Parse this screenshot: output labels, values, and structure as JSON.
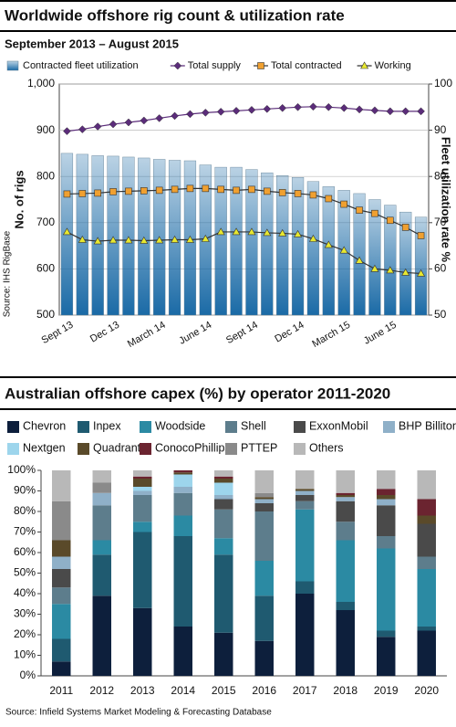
{
  "chart_data": [
    {
      "type": "combo",
      "title": "Worldwide offshore rig count & utilization rate",
      "subtitle": "September 2013 – August 2015",
      "ylabel": "No. of rigs",
      "y2label": "Fleet utilization rate %",
      "source": "Source: IHS RigBase",
      "categories": [
        "Sept 13",
        null,
        null,
        "Dec 13",
        null,
        null,
        "March 14",
        null,
        null,
        "June 14",
        null,
        null,
        "Sept 14",
        null,
        null,
        "Dec 14",
        null,
        null,
        "March 15",
        null,
        null,
        "June 15",
        null,
        null
      ],
      "ylim": [
        500,
        1000
      ],
      "yticks": [
        500,
        600,
        700,
        800,
        900,
        {
          "value": 1000,
          "label": "1,000"
        }
      ],
      "y2lim": [
        50,
        100
      ],
      "y2ticks": [
        50,
        60,
        70,
        80,
        90,
        100
      ],
      "series": [
        {
          "name": "Contracted fleet utilization",
          "kind": "bar",
          "axis": "y2",
          "color": "#1a6aa6",
          "values": [
            85,
            84.8,
            84.5,
            84.4,
            84.2,
            84,
            83.7,
            83.5,
            83.4,
            82.5,
            82,
            82,
            81.5,
            80.8,
            80.2,
            79.8,
            78.9,
            77.8,
            77,
            76.3,
            75,
            73.8,
            72.3,
            71.2
          ]
        },
        {
          "name": "Total supply",
          "kind": "line",
          "marker": "diamond",
          "color": "#5b2c7a",
          "line_color": "#5b2c7a",
          "values": [
            898,
            902,
            908,
            913,
            917,
            921,
            926,
            931,
            935,
            938,
            940,
            942,
            944,
            946,
            948,
            950,
            951,
            950,
            948,
            945,
            943,
            941,
            941,
            941
          ]
        },
        {
          "name": "Total contracted",
          "kind": "line",
          "marker": "square",
          "color": "#f0a030",
          "line_color": "#333333",
          "values": [
            762,
            763,
            764,
            767,
            768,
            769,
            770,
            772,
            774,
            774,
            772,
            770,
            772,
            768,
            765,
            763,
            760,
            752,
            740,
            727,
            720,
            705,
            690,
            672
          ]
        },
        {
          "name": "Working",
          "kind": "line",
          "marker": "triangle",
          "color": "#e8e830",
          "line_color": "#333333",
          "values": [
            680,
            663,
            660,
            662,
            662,
            661,
            662,
            663,
            663,
            665,
            680,
            680,
            680,
            678,
            677,
            675,
            665,
            652,
            640,
            618,
            600,
            597,
            592,
            590
          ]
        }
      ]
    },
    {
      "type": "stacked_bar",
      "title": "Australian offshore capex (%) by operator 2011-2020",
      "source": "Source: Infield Systems Market Modeling & Forecasting Database",
      "categories": [
        "2011",
        "2012",
        "2013",
        "2014",
        "2015",
        "2016",
        "2017",
        "2018",
        "2019",
        "2020"
      ],
      "ylim": [
        0,
        100
      ],
      "yticks": [
        {
          "value": 0,
          "label": "0%"
        },
        {
          "value": 10,
          "label": "10%"
        },
        {
          "value": 20,
          "label": "20%"
        },
        {
          "value": 30,
          "label": "30%"
        },
        {
          "value": 40,
          "label": "40%"
        },
        {
          "value": 50,
          "label": "50%"
        },
        {
          "value": 60,
          "label": "60%"
        },
        {
          "value": 70,
          "label": "70%"
        },
        {
          "value": 80,
          "label": "80%"
        },
        {
          "value": 90,
          "label": "90%"
        },
        {
          "value": 100,
          "label": "100%"
        }
      ],
      "series": [
        {
          "name": "Chevron",
          "color": "#0d1f3c",
          "values": [
            7,
            39,
            33,
            24,
            21,
            17,
            40,
            32,
            19,
            22
          ]
        },
        {
          "name": "Inpex",
          "color": "#1f5a70",
          "values": [
            11,
            20,
            37,
            44,
            38,
            22,
            6,
            4,
            3,
            2
          ]
        },
        {
          "name": "Woodside",
          "color": "#2b8aa3",
          "values": [
            17,
            7,
            5,
            10,
            8,
            17,
            35,
            30,
            40,
            28
          ]
        },
        {
          "name": "Shell",
          "color": "#5d7d8c",
          "values": [
            8,
            17,
            13,
            11,
            14,
            24,
            4,
            9,
            6,
            6
          ]
        },
        {
          "name": "ExxonMobil",
          "color": "#4a4a4a",
          "values": [
            9,
            0,
            0,
            0,
            5,
            4,
            3,
            10,
            15,
            16
          ]
        },
        {
          "name": "BHP Billiton",
          "color": "#8fb0c8",
          "values": [
            6,
            6,
            2,
            3,
            2,
            2,
            2,
            2,
            3,
            0
          ]
        },
        {
          "name": "Nextgen",
          "color": "#9dd5ec",
          "values": [
            0,
            0,
            2,
            6,
            6,
            0,
            0,
            0,
            0,
            0
          ]
        },
        {
          "name": "Quadrant",
          "color": "#5a4a2a",
          "values": [
            8,
            0,
            4,
            1,
            2,
            1,
            1,
            1,
            2,
            4
          ]
        },
        {
          "name": "ConocoPhillips",
          "color": "#6b2430",
          "values": [
            0,
            0,
            1,
            1,
            1,
            0,
            0,
            1,
            3,
            8
          ]
        },
        {
          "name": "PTTEP",
          "color": "#8a8a8a",
          "values": [
            19,
            5,
            0,
            0,
            0,
            2,
            0,
            0,
            0,
            0
          ]
        },
        {
          "name": "Others",
          "color": "#b8b8b8",
          "values": [
            15,
            6,
            3,
            0,
            3,
            11,
            9,
            11,
            9,
            14
          ]
        }
      ]
    }
  ]
}
